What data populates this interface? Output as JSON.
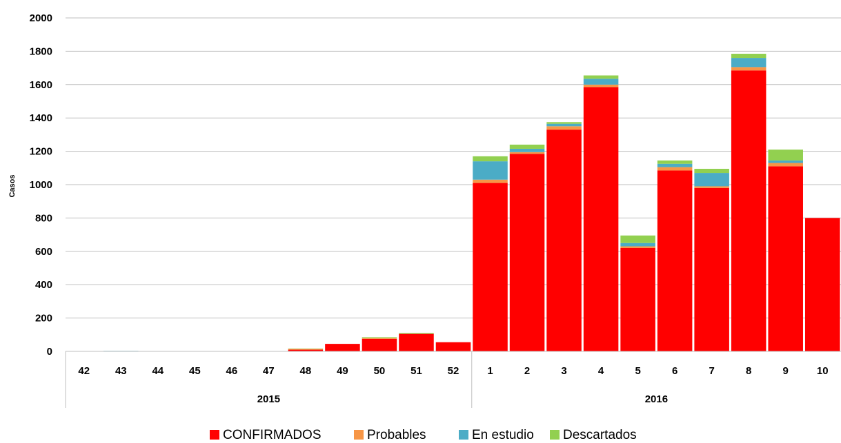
{
  "chart_data": {
    "type": "bar",
    "stacked": true,
    "ylabel": "Casos",
    "ylim": [
      0,
      2000
    ],
    "yticks": [
      0,
      200,
      400,
      600,
      800,
      1000,
      1200,
      1400,
      1600,
      1800,
      2000
    ],
    "grid": true,
    "legend_position": "bottom",
    "groups": [
      {
        "label": "2015",
        "count": 11
      },
      {
        "label": "2016",
        "count": 10
      }
    ],
    "categories": [
      "42",
      "43",
      "44",
      "45",
      "46",
      "47",
      "48",
      "49",
      "50",
      "51",
      "52",
      "1",
      "2",
      "3",
      "4",
      "5",
      "6",
      "7",
      "8",
      "9",
      "10"
    ],
    "series": [
      {
        "name": "CONFIRMADOS",
        "color": "#ff0000",
        "values": [
          0,
          0,
          0,
          0,
          0,
          0,
          10,
          45,
          75,
          105,
          55,
          1010,
          1185,
          1330,
          1585,
          620,
          1085,
          980,
          1685,
          1110,
          800
        ]
      },
      {
        "name": "Probables",
        "color": "#f79646",
        "values": [
          0,
          0,
          0,
          0,
          0,
          0,
          5,
          0,
          5,
          0,
          0,
          20,
          10,
          20,
          15,
          10,
          20,
          10,
          20,
          20,
          0
        ]
      },
      {
        "name": "En estudio",
        "color": "#4bacc6",
        "values": [
          0,
          3,
          1,
          0,
          0,
          0,
          0,
          0,
          0,
          0,
          0,
          110,
          20,
          15,
          35,
          20,
          20,
          80,
          55,
          15,
          0
        ]
      },
      {
        "name": "Descartados",
        "color": "#92d050",
        "values": [
          0,
          0,
          0,
          0,
          0,
          0,
          2,
          0,
          5,
          5,
          0,
          30,
          25,
          10,
          20,
          45,
          20,
          25,
          25,
          65,
          0
        ]
      }
    ]
  }
}
